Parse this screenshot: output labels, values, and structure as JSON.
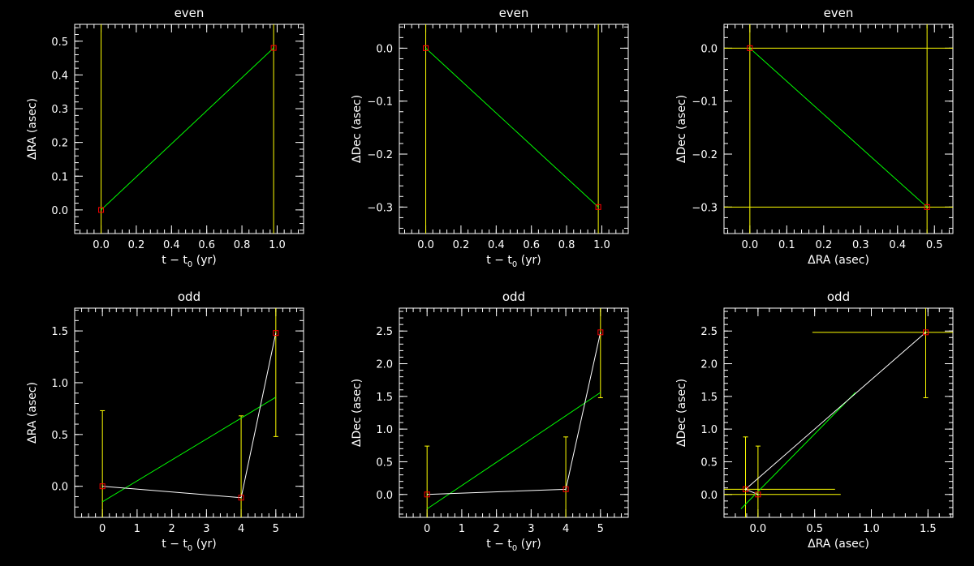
{
  "colors": {
    "background": "#000000",
    "axes": "#ffffff",
    "fit_line": "#00ff00",
    "data_line": "#ffffff",
    "error_bars": "#ffff00",
    "markers": "#ff0000"
  },
  "chart_data": [
    {
      "type": "line",
      "title": "even",
      "xlabel_main": "t − t",
      "xlabel_sub": "0",
      "xlabel_unit": " (yr)",
      "ylabel": "ΔRA (asec)",
      "xlim": [
        -0.15,
        1.15
      ],
      "ylim": [
        -0.07,
        0.55
      ],
      "xticks": [
        0.0,
        0.2,
        0.4,
        0.6,
        0.8,
        1.0
      ],
      "xtick_labels": [
        "0.0",
        "0.2",
        "0.4",
        "0.6",
        "0.8",
        "1.0"
      ],
      "yticks": [
        0.0,
        0.1,
        0.2,
        0.3,
        0.4,
        0.5
      ],
      "ytick_labels": [
        "0.0",
        "0.1",
        "0.2",
        "0.3",
        "0.4",
        "0.5"
      ],
      "points": [
        {
          "x": 0.0,
          "y": 0.0
        },
        {
          "x": 0.98,
          "y": 0.48
        }
      ],
      "fit": [
        [
          0.0,
          0.0
        ],
        [
          0.98,
          0.48
        ]
      ],
      "yerr": [
        [
          -0.07,
          0.55
        ],
        [
          -0.07,
          0.55
        ]
      ],
      "xerr": null,
      "show_data_line": false
    },
    {
      "type": "line",
      "title": "even",
      "xlabel_main": "t − t",
      "xlabel_sub": "0",
      "xlabel_unit": " (yr)",
      "ylabel": "ΔDec (asec)",
      "xlim": [
        -0.15,
        1.15
      ],
      "ylim": [
        -0.35,
        0.045
      ],
      "xticks": [
        0.0,
        0.2,
        0.4,
        0.6,
        0.8,
        1.0
      ],
      "xtick_labels": [
        "0.0",
        "0.2",
        "0.4",
        "0.6",
        "0.8",
        "1.0"
      ],
      "yticks": [
        0.0,
        -0.1,
        -0.2,
        -0.3
      ],
      "ytick_labels": [
        "0.0",
        "−0.1",
        "−0.2",
        "−0.3"
      ],
      "points": [
        {
          "x": 0.0,
          "y": 0.0
        },
        {
          "x": 0.98,
          "y": -0.3
        }
      ],
      "fit": [
        [
          0.0,
          0.0
        ],
        [
          0.98,
          -0.3
        ]
      ],
      "yerr": [
        [
          -0.35,
          0.045
        ],
        [
          -0.35,
          0.045
        ]
      ],
      "xerr": null,
      "show_data_line": false
    },
    {
      "type": "scatter",
      "title": "even",
      "xlabel_main": "ΔRA (asec)",
      "xlabel_sub": "",
      "xlabel_unit": "",
      "ylabel": "ΔDec (asec)",
      "xlim": [
        -0.07,
        0.55
      ],
      "ylim": [
        -0.35,
        0.045
      ],
      "xticks": [
        0.0,
        0.1,
        0.2,
        0.3,
        0.4,
        0.5
      ],
      "xtick_labels": [
        "0.0",
        "0.1",
        "0.2",
        "0.3",
        "0.4",
        "0.5"
      ],
      "yticks": [
        0.0,
        -0.1,
        -0.2,
        -0.3
      ],
      "ytick_labels": [
        "0.0",
        "−0.1",
        "−0.2",
        "−0.3"
      ],
      "points": [
        {
          "x": 0.0,
          "y": 0.0
        },
        {
          "x": 0.48,
          "y": -0.3
        }
      ],
      "fit": [
        [
          0.0,
          0.0
        ],
        [
          0.48,
          -0.3
        ]
      ],
      "yerr": [
        [
          -0.35,
          0.045
        ],
        [
          -0.35,
          0.045
        ]
      ],
      "xerr": [
        [
          -0.07,
          0.55
        ],
        [
          -0.07,
          0.55
        ]
      ],
      "show_data_line": false
    },
    {
      "type": "line",
      "title": "odd",
      "xlabel_main": "t − t",
      "xlabel_sub": "0",
      "xlabel_unit": " (yr)",
      "ylabel": "ΔRA (asec)",
      "xlim": [
        -0.8,
        5.8
      ],
      "ylim": [
        -0.3,
        1.72
      ],
      "xticks": [
        0,
        1,
        2,
        3,
        4,
        5
      ],
      "xtick_labels": [
        "0",
        "1",
        "2",
        "3",
        "4",
        "5"
      ],
      "yticks": [
        0.0,
        0.5,
        1.0,
        1.5
      ],
      "ytick_labels": [
        "0.0",
        "0.5",
        "1.0",
        "1.5"
      ],
      "points": [
        {
          "x": 0,
          "y": 0.0
        },
        {
          "x": 4,
          "y": -0.11
        },
        {
          "x": 5,
          "y": 1.48
        }
      ],
      "fit": [
        [
          0,
          -0.15
        ],
        [
          5,
          0.86
        ]
      ],
      "yerr": [
        [
          -0.3,
          0.73
        ],
        [
          -0.3,
          0.68
        ],
        [
          0.48,
          1.72
        ]
      ],
      "xerr": null,
      "show_data_line": true
    },
    {
      "type": "line",
      "title": "odd",
      "xlabel_main": "t − t",
      "xlabel_sub": "0",
      "xlabel_unit": " (yr)",
      "ylabel": "ΔDec (asec)",
      "xlim": [
        -0.8,
        5.8
      ],
      "ylim": [
        -0.35,
        2.85
      ],
      "xticks": [
        0,
        1,
        2,
        3,
        4,
        5
      ],
      "xtick_labels": [
        "0",
        "1",
        "2",
        "3",
        "4",
        "5"
      ],
      "yticks": [
        0.0,
        0.5,
        1.0,
        1.5,
        2.0,
        2.5
      ],
      "ytick_labels": [
        "0.0",
        "0.5",
        "1.0",
        "1.5",
        "2.0",
        "2.5"
      ],
      "points": [
        {
          "x": 0,
          "y": 0.0
        },
        {
          "x": 4,
          "y": 0.08
        },
        {
          "x": 5,
          "y": 2.48
        }
      ],
      "fit": [
        [
          0,
          -0.22
        ],
        [
          5,
          1.56
        ]
      ],
      "yerr": [
        [
          -0.35,
          0.74
        ],
        [
          -0.35,
          0.88
        ],
        [
          1.48,
          2.85
        ]
      ],
      "xerr": null,
      "show_data_line": true
    },
    {
      "type": "scatter",
      "title": "odd",
      "xlabel_main": "ΔRA (asec)",
      "xlabel_sub": "",
      "xlabel_unit": "",
      "ylabel": "ΔDec (asec)",
      "xlim": [
        -0.3,
        1.72
      ],
      "ylim": [
        -0.35,
        2.85
      ],
      "xticks": [
        0.0,
        0.5,
        1.0,
        1.5
      ],
      "xtick_labels": [
        "0.0",
        "0.5",
        "1.0",
        "1.5"
      ],
      "yticks": [
        0.0,
        0.5,
        1.0,
        1.5,
        2.0,
        2.5
      ],
      "ytick_labels": [
        "0.0",
        "0.5",
        "1.0",
        "1.5",
        "2.0",
        "2.5"
      ],
      "points": [
        {
          "x": -0.11,
          "y": 0.08
        },
        {
          "x": 0.0,
          "y": 0.0
        },
        {
          "x": 1.48,
          "y": 2.48
        }
      ],
      "fit": [
        [
          -0.15,
          -0.22
        ],
        [
          0.86,
          1.56
        ]
      ],
      "data_line_points": [
        {
          "x": 0.0,
          "y": 0.0
        },
        {
          "x": -0.11,
          "y": 0.08
        },
        {
          "x": 1.48,
          "y": 2.48
        }
      ],
      "yerr": [
        [
          -0.35,
          0.88
        ],
        [
          -0.35,
          0.74
        ],
        [
          1.48,
          2.85
        ]
      ],
      "xerr": [
        [
          -0.3,
          0.68
        ],
        [
          -0.3,
          0.73
        ],
        [
          0.48,
          1.72
        ]
      ],
      "show_data_line": true
    }
  ]
}
